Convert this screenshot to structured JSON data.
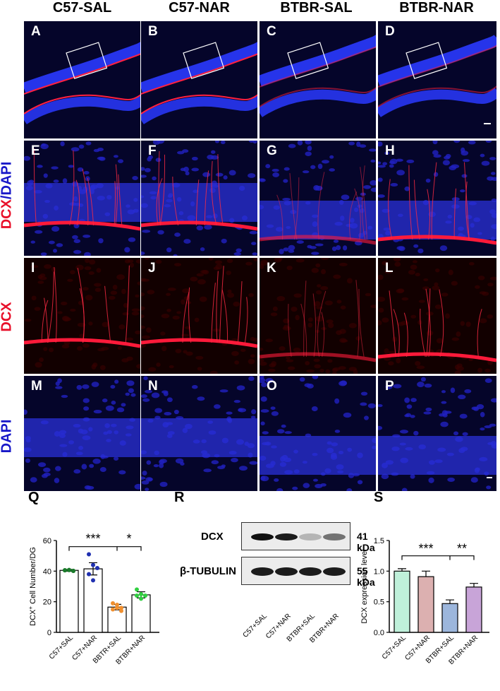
{
  "column_titles": [
    "C57-SAL",
    "C57-NAR",
    "BTBR-SAL",
    "BTBR-NAR"
  ],
  "row_labels": {
    "row2_red": "DCX",
    "row2_sep": "/",
    "row2_blue": "DAPI",
    "row3": "DCX",
    "row4": "DAPI"
  },
  "panel_letters": [
    "A",
    "B",
    "C",
    "D",
    "E",
    "F",
    "G",
    "H",
    "I",
    "J",
    "K",
    "L",
    "M",
    "N",
    "O",
    "P"
  ],
  "colors": {
    "red": "#e8102a",
    "blue": "#1818c8"
  },
  "figure_labels": {
    "q": "Q",
    "r": "R",
    "s": "S"
  },
  "western": {
    "band1_label": "DCX",
    "band1_kda": "41 kDa",
    "band2_label": "β-TUBULIN",
    "band2_kda": "55 kDa",
    "lanes": [
      "C57+SAL",
      "C57+NAR",
      "BTBR+SAL",
      "BTBR+NAR"
    ],
    "dcx_intensity": [
      1.0,
      0.95,
      0.25,
      0.55
    ]
  },
  "chart_data": [
    {
      "type": "bar",
      "title": "",
      "ylabel": "DCX⁺ Cell Number/DG",
      "ylabel_main": "DCX",
      "ylabel_sup": "+",
      "ylabel_rest": " Cell Number/DG",
      "categories": [
        "C57+SAL",
        "C57+NAR",
        "BBTR+SAL",
        "BTBR+NAR"
      ],
      "values": [
        40.5,
        41.5,
        16.5,
        24.5
      ],
      "sem": [
        0.6,
        4.0,
        1.8,
        2.0
      ],
      "points": [
        [
          40.5,
          40.8,
          40.2,
          40.6,
          40.7,
          40.1
        ],
        [
          51,
          44,
          42,
          38,
          34
        ],
        [
          19,
          18,
          16,
          15,
          16,
          14
        ],
        [
          28,
          25,
          24,
          24,
          22
        ]
      ],
      "point_colors": [
        "#1a7a2a",
        "#2030b0",
        "#f09030",
        "#30d040"
      ],
      "ylim": [
        0,
        60
      ],
      "yticks": [
        0,
        20,
        40,
        60
      ],
      "significance": [
        "***",
        "*"
      ]
    },
    {
      "type": "bar",
      "title": "",
      "ylabel": "DCX expression level",
      "categories": [
        "C57+SAL",
        "C57+NAR",
        "BTBR+SAL",
        "BTBR+NAR"
      ],
      "values": [
        1.0,
        0.91,
        0.47,
        0.74
      ],
      "sem": [
        0.04,
        0.09,
        0.06,
        0.06
      ],
      "bar_colors": [
        "#bff0da",
        "#dcb0b0",
        "#9cb6dc",
        "#c8a4d8"
      ],
      "ylim": [
        0,
        1.5
      ],
      "yticks": [
        "0.0",
        "0.5",
        "1.0",
        "1.5"
      ],
      "significance": [
        "***",
        "**"
      ]
    }
  ]
}
